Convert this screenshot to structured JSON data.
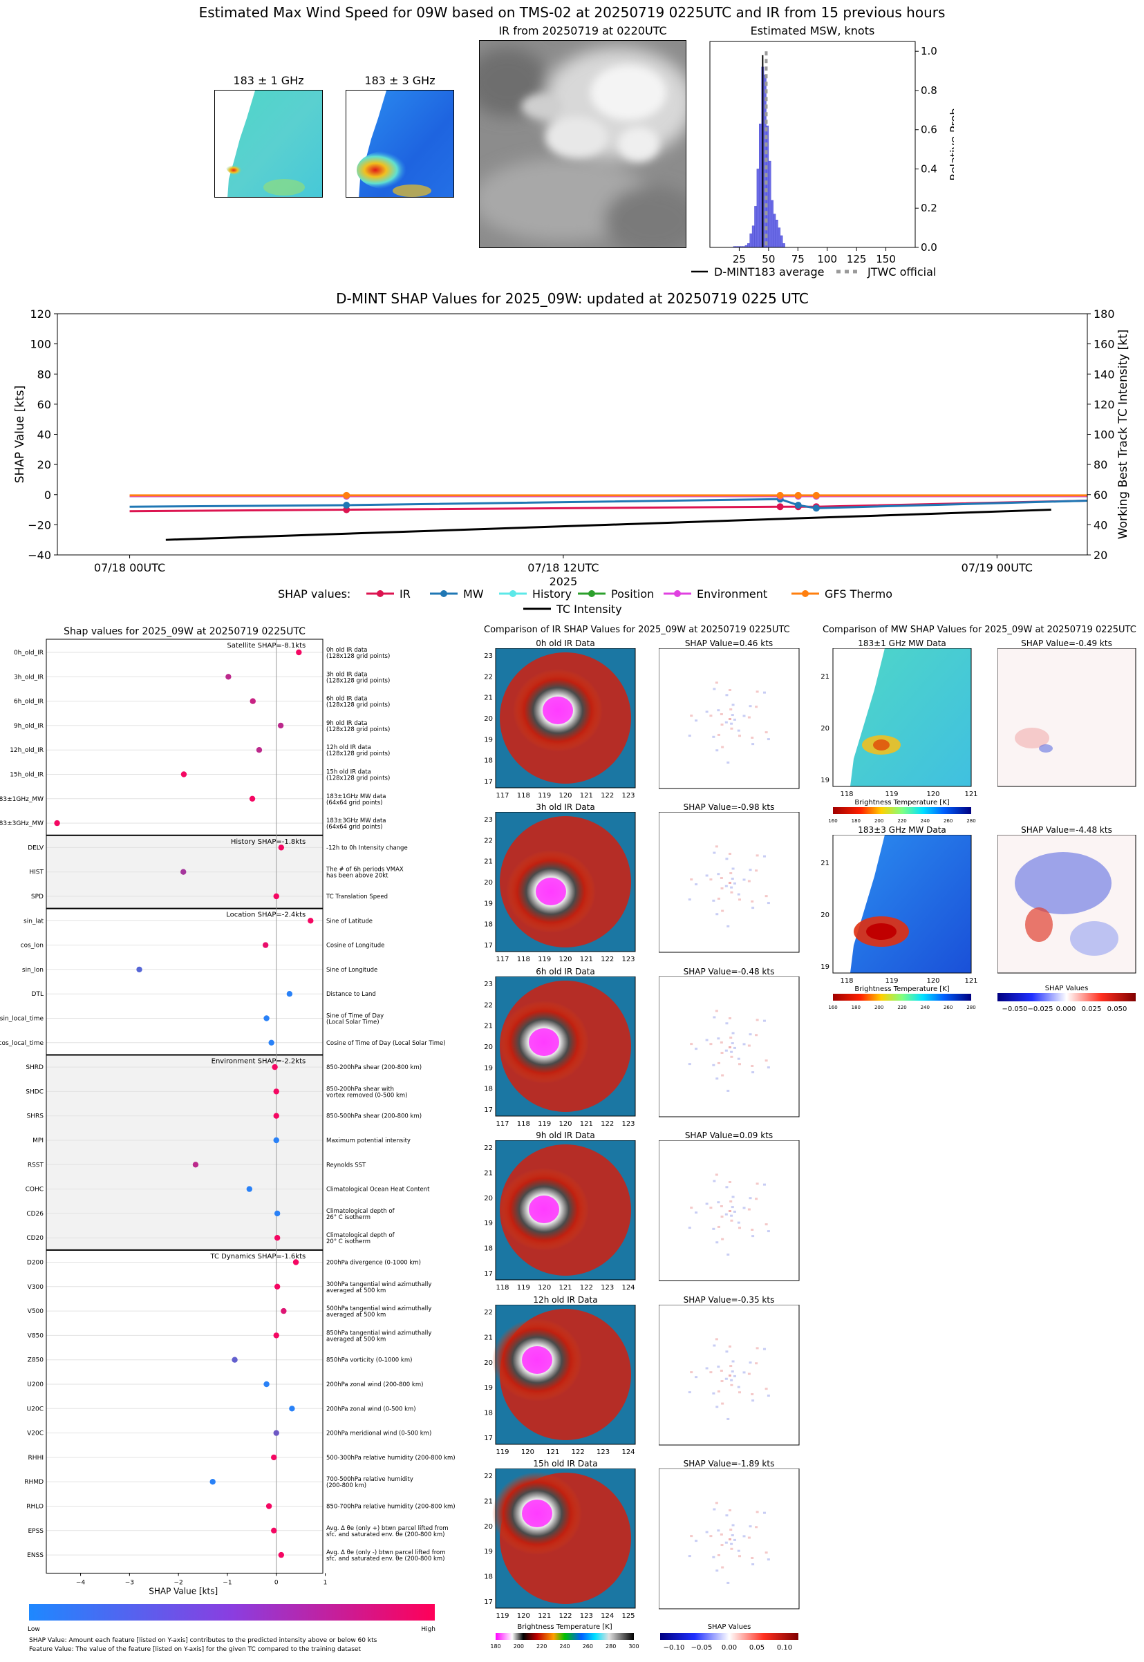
{
  "header": {
    "title": "Estimated Max Wind Speed for 09W based on TMS-02 at 20250719 0225UTC and IR from 15 previous hours",
    "mw1_title": "183 ± 1 GHz",
    "mw3_title": "183 ± 3 GHz",
    "ir_title": "IR from 20250719 at 0220UTC"
  },
  "hist": {
    "title": "Estimated MSW, knots",
    "ylabel": "Relative Prob",
    "xticks": [
      "25",
      "50",
      "75",
      "100",
      "125",
      "150"
    ],
    "yticks": [
      "0.0",
      "0.2",
      "0.4",
      "0.6",
      "0.8",
      "1.0"
    ],
    "legend_avg": "D-MINT183 average",
    "legend_jtwc": "JTWC official"
  },
  "timeseries": {
    "title": "D-MINT SHAP Values for 2025_09W: updated at 20250719 0225 UTC",
    "ylabel_left": "SHAP Value [kts]",
    "ylabel_right": "Working Best Track TC Intensity [kt]",
    "xlabel": "2025",
    "yticks_left": [
      "120",
      "100",
      "80",
      "60",
      "40",
      "20",
      "0",
      "−20",
      "−40"
    ],
    "yticks_right": [
      "180",
      "160",
      "140",
      "120",
      "100",
      "80",
      "60",
      "40",
      "20"
    ],
    "xticks": [
      "07/18 00UTC",
      "07/18 12UTC",
      "07/19 00UTC"
    ],
    "legend_title": "SHAP values:",
    "legend": [
      "IR",
      "MW",
      "History",
      "Position",
      "Environment",
      "GFS Thermo",
      "TC Intensity"
    ]
  },
  "shap": {
    "title": "Shap values for 2025_09W at 20250719 0225UTC",
    "xlabel": "SHAP Value [kts]",
    "xticks": [
      "−4",
      "−3",
      "−2",
      "−1",
      "0",
      "1"
    ],
    "colorbar_low": "Low",
    "colorbar_high": "High",
    "footnote1": "SHAP Value: Amount each feature [listed on Y-axis] contributes to the predicted intensity above or below 60 kts",
    "footnote2": "Feature Value: The value of the feature [listed on Y-axis] for the given TC compared to the training dataset"
  },
  "ir_compare": {
    "title": "Comparison of IR SHAP Values for 2025_09W at 20250719 0225UTC",
    "cb_label": "Brightness Temperature [K]",
    "cb_ticks": [
      "180",
      "200",
      "220",
      "240",
      "260",
      "280",
      "300"
    ],
    "shap_cb_label": "SHAP Values",
    "shap_cb_ticks": [
      "−0.10",
      "−0.05",
      "0.00",
      "0.05",
      "0.10"
    ],
    "rows": [
      {
        "title": "0h old IR Data",
        "shap": "SHAP Value=0.46 kts",
        "yticks": [
          "23",
          "22",
          "21",
          "20",
          "19",
          "18",
          "17"
        ],
        "xticks": [
          "117",
          "118",
          "119",
          "120",
          "121",
          "122",
          "123"
        ]
      },
      {
        "title": "3h old IR Data",
        "shap": "SHAP Value=-0.98 kts",
        "yticks": [
          "23",
          "22",
          "21",
          "20",
          "19",
          "18",
          "17"
        ],
        "xticks": [
          "117",
          "118",
          "119",
          "120",
          "121",
          "122",
          "123"
        ]
      },
      {
        "title": "6h old IR Data",
        "shap": "SHAP Value=-0.48 kts",
        "yticks": [
          "23",
          "22",
          "21",
          "20",
          "19",
          "18",
          "17"
        ],
        "xticks": [
          "117",
          "118",
          "119",
          "120",
          "121",
          "122",
          "123"
        ]
      },
      {
        "title": "9h old IR Data",
        "shap": "SHAP Value=0.09 kts",
        "yticks": [
          "22",
          "21",
          "20",
          "19",
          "18",
          "17"
        ],
        "xticks": [
          "118",
          "119",
          "120",
          "121",
          "122",
          "123",
          "124"
        ]
      },
      {
        "title": "12h old IR Data",
        "shap": "SHAP Value=-0.35 kts",
        "yticks": [
          "22",
          "21",
          "20",
          "19",
          "18",
          "17"
        ],
        "xticks": [
          "119",
          "120",
          "121",
          "122",
          "123",
          "124"
        ]
      },
      {
        "title": "15h old IR Data",
        "shap": "SHAP Value=-1.89 kts",
        "yticks": [
          "22",
          "21",
          "20",
          "19",
          "18",
          "17"
        ],
        "xticks": [
          "119",
          "120",
          "121",
          "122",
          "123",
          "124",
          "125"
        ]
      }
    ]
  },
  "mw_compare": {
    "title": "Comparison of MW SHAP Values for 2025_09W at 20250719 0225UTC",
    "cb_label": "Brightness Temperature [K]",
    "cb_ticks": [
      "160",
      "180",
      "200",
      "220",
      "240",
      "260",
      "280"
    ],
    "shap_cb_label": "SHAP Values",
    "shap_cb_ticks": [
      "−0.050",
      "−0.025",
      "0.000",
      "0.025",
      "0.050"
    ],
    "rows": [
      {
        "title": "183±1 GHz MW Data",
        "shap": "SHAP Value=-0.49 kts",
        "yticks": [
          "21",
          "20",
          "19"
        ],
        "xticks": [
          "118",
          "119",
          "120",
          "121"
        ]
      },
      {
        "title": "183±3 GHz MW Data",
        "shap": "SHAP Value=-4.48 kts",
        "yticks": [
          "21",
          "20",
          "19"
        ],
        "xticks": [
          "118",
          "119",
          "120",
          "121"
        ]
      }
    ]
  },
  "chart_data": [
    {
      "type": "bar",
      "title": "Estimated MSW, knots",
      "xlabel": "",
      "ylabel": "Relative Prob",
      "xlim": [
        0,
        175
      ],
      "ylim": [
        0,
        1.05
      ],
      "bin_width": 2,
      "bins": [
        20,
        22,
        24,
        26,
        28,
        30,
        32,
        34,
        36,
        38,
        40,
        42,
        44,
        46,
        48,
        50,
        52,
        54,
        56,
        58,
        60,
        62
      ],
      "values": [
        0.005,
        0.005,
        0.005,
        0.005,
        0.005,
        0.01,
        0.02,
        0.07,
        0.11,
        0.21,
        0.4,
        0.63,
        0.92,
        0.88,
        0.62,
        0.44,
        0.24,
        0.17,
        0.14,
        0.1,
        0.06,
        0.02
      ],
      "average_line_x": 45,
      "official_line_x": 48
    },
    {
      "type": "line",
      "title": "D-MINT SHAP Values for 2025_09W: updated at 20250719 0225 UTC",
      "xlabel": "2025",
      "ylabel": "SHAP Value [kts]",
      "y2label": "Working Best Track TC Intensity [kt]",
      "xlim_hours": [
        -2,
        26.5
      ],
      "ylim": [
        -40,
        120
      ],
      "y2lim": [
        20,
        180
      ],
      "xticks": [
        "07/18 00UTC",
        "07/18 12UTC",
        "07/19 00UTC"
      ],
      "series": [
        {
          "name": "IR",
          "color": "#dc1450",
          "x": [
            0,
            6,
            18,
            18.5,
            19,
            26.5
          ],
          "y": [
            -11,
            -10,
            -8,
            -8,
            -8,
            -4
          ],
          "markers": [
            6,
            18,
            18.5,
            19
          ]
        },
        {
          "name": "MW",
          "color": "#1f77b4",
          "x": [
            0,
            6,
            18,
            18.5,
            19,
            26.5
          ],
          "y": [
            -8,
            -7,
            -3,
            -7,
            -9,
            -4
          ],
          "markers": [
            6,
            18,
            18.5,
            19
          ]
        },
        {
          "name": "History",
          "color": "#5ce8e8",
          "x": [
            0,
            6,
            18,
            18.5,
            19,
            26.5
          ],
          "y": [
            -1,
            -1,
            -1,
            -1,
            -1,
            -1
          ],
          "markers": [
            6,
            18,
            18.5,
            19
          ]
        },
        {
          "name": "Position",
          "color": "#2ca02c",
          "x": [
            0,
            6,
            18,
            18.5,
            19,
            26.5
          ],
          "y": [
            -1,
            -1,
            -1,
            -1,
            -1,
            -1
          ],
          "markers": [
            6,
            18,
            18.5,
            19
          ]
        },
        {
          "name": "Environment",
          "color": "#e040e0",
          "x": [
            0,
            6,
            18,
            18.5,
            19,
            26.5
          ],
          "y": [
            -1,
            -1,
            -1,
            -1,
            -1,
            -1
          ],
          "markers": [
            6,
            18,
            18.5,
            19
          ]
        },
        {
          "name": "GFS Thermo",
          "color": "#ff7f0e",
          "x": [
            0,
            6,
            18,
            18.5,
            19,
            26.5
          ],
          "y": [
            -0.5,
            -0.5,
            -0.5,
            -0.5,
            -0.5,
            -0.5
          ],
          "markers": [
            6,
            18,
            18.5,
            19
          ]
        },
        {
          "name": "TC Intensity",
          "color": "#000000",
          "axis": "y2",
          "x": [
            1,
            25.5
          ],
          "y": [
            30,
            50
          ]
        }
      ]
    },
    {
      "type": "scatter",
      "title": "Shap values for 2025_09W at 20250719 0225UTC",
      "xlabel": "SHAP Value [kts]",
      "xlim": [
        -4.7,
        0.95
      ],
      "groups": [
        {
          "label": "Satellite SHAP=-8.1kts",
          "start": 0,
          "end": 8
        },
        {
          "label": "History SHAP=-1.8kts",
          "start": 8,
          "end": 11
        },
        {
          "label": "Location SHAP=-2.4kts",
          "start": 11,
          "end": 17
        },
        {
          "label": "Environment SHAP=-2.2kts",
          "start": 17,
          "end": 25
        },
        {
          "label": "TC Dynamics SHAP=-1.6kts",
          "start": 25,
          "end": 38
        }
      ],
      "features": [
        {
          "name": "0h_old_IR",
          "desc": "0h old IR data\n(128x128 grid points)",
          "shap": 0.46,
          "val": 0.95
        },
        {
          "name": "3h_old_IR",
          "desc": "3h old IR data\n(128x128 grid points)",
          "shap": -0.98,
          "val": 0.7
        },
        {
          "name": "6h_old_IR",
          "desc": "6h old IR data\n(128x128 grid points)",
          "shap": -0.48,
          "val": 0.75
        },
        {
          "name": "9h_old_IR",
          "desc": "9h old IR data\n(128x128 grid points)",
          "shap": 0.09,
          "val": 0.7
        },
        {
          "name": "12h_old_IR",
          "desc": "12h old IR data\n(128x128 grid points)",
          "shap": -0.35,
          "val": 0.7
        },
        {
          "name": "15h_old_IR",
          "desc": "15h old IR data\n(128x128 grid points)",
          "shap": -1.89,
          "val": 0.95
        },
        {
          "name": "183±1GHz_MW",
          "desc": "183±1GHz MW data\n(64x64 grid points)",
          "shap": -0.49,
          "val": 0.95
        },
        {
          "name": "183±3GHz_MW",
          "desc": "183±3GHz MW data\n(64x64 grid points)",
          "shap": -4.48,
          "val": 0.95
        },
        {
          "name": "DELV",
          "desc": "-12h to 0h Intensity change",
          "shap": 0.1,
          "val": 0.95
        },
        {
          "name": "HIST",
          "desc": "The # of 6h periods VMAX\nhas been above 20kt",
          "shap": -1.9,
          "val": 0.6
        },
        {
          "name": "SPD",
          "desc": "TC Translation Speed",
          "shap": 0.0,
          "val": 0.95
        },
        {
          "name": "sin_lat",
          "desc": "Sine of Latitude",
          "shap": 0.7,
          "val": 0.95
        },
        {
          "name": "cos_lon",
          "desc": "Cosine of Longitude",
          "shap": -0.22,
          "val": 0.9
        },
        {
          "name": "sin_lon",
          "desc": "Sine of Longitude",
          "shap": -2.8,
          "val": 0.25
        },
        {
          "name": "DTL",
          "desc": "Distance to Land",
          "shap": 0.27,
          "val": 0.05
        },
        {
          "name": "sin_local_time",
          "desc": "Sine of Time of Day\n(Local Solar Time)",
          "shap": -0.2,
          "val": 0.05
        },
        {
          "name": "cos_local_time",
          "desc": "Cosine of Time of Day (Local Solar Time)",
          "shap": -0.1,
          "val": 0.05
        },
        {
          "name": "SHRD",
          "desc": "850-200hPa shear (200-800 km)",
          "shap": -0.03,
          "val": 0.95
        },
        {
          "name": "SHDC",
          "desc": "850-200hPa shear with\nvortex removed (0-500 km)",
          "shap": 0.0,
          "val": 0.95
        },
        {
          "name": "SHRS",
          "desc": "850-500hPa shear (200-800 km)",
          "shap": 0.0,
          "val": 0.95
        },
        {
          "name": "MPI",
          "desc": "Maximum potential intensity",
          "shap": 0.0,
          "val": 0.05
        },
        {
          "name": "RSST",
          "desc": "Reynolds SST",
          "shap": -1.65,
          "val": 0.7
        },
        {
          "name": "COHC",
          "desc": "Climatological Ocean Heat Content",
          "shap": -0.55,
          "val": 0.05
        },
        {
          "name": "CD26",
          "desc": "Climatological depth of\n26° C isotherm",
          "shap": 0.02,
          "val": 0.05
        },
        {
          "name": "CD20",
          "desc": "Climatological depth of\n20° C isotherm",
          "shap": 0.02,
          "val": 0.95
        },
        {
          "name": "D200",
          "desc": "200hPa divergence (0-1000 km)",
          "shap": 0.4,
          "val": 0.95
        },
        {
          "name": "V300",
          "desc": "300hPa tangential wind azimuthally\naveraged at 500 km",
          "shap": 0.02,
          "val": 0.95
        },
        {
          "name": "V500",
          "desc": "500hPa tangential wind azimuthally\naveraged at 500 km",
          "shap": 0.15,
          "val": 0.85
        },
        {
          "name": "V850",
          "desc": "850hPa tangential wind azimuthally\naveraged at 500 km",
          "shap": 0.0,
          "val": 0.95
        },
        {
          "name": "Z850",
          "desc": "850hPa vorticity (0-1000 km)",
          "shap": -0.85,
          "val": 0.3
        },
        {
          "name": "U200",
          "desc": "200hPa zonal wind (200-800 km)",
          "shap": -0.2,
          "val": 0.05
        },
        {
          "name": "U20C",
          "desc": "200hPa zonal wind (0-500 km)",
          "shap": 0.32,
          "val": 0.05
        },
        {
          "name": "V20C",
          "desc": "200hPa meridional wind (0-500 km)",
          "shap": 0.0,
          "val": 0.35
        },
        {
          "name": "RHHI",
          "desc": "500-300hPa relative humidity (200-800 km)",
          "shap": -0.05,
          "val": 0.95
        },
        {
          "name": "RHMD",
          "desc": "700-500hPa relative humidity\n(200-800 km)",
          "shap": -1.3,
          "val": 0.05
        },
        {
          "name": "RHLO",
          "desc": "850-700hPa relative humidity (200-800 km)",
          "shap": -0.15,
          "val": 0.95
        },
        {
          "name": "EPSS",
          "desc": "Avg. Δ θe (only +) btwn parcel lifted from\nsfc. and saturated env. θe (200-800 km)",
          "shap": -0.05,
          "val": 0.95
        },
        {
          "name": "ENSS",
          "desc": "Avg. Δ θe (only -) btwn parcel lifted from\nsfc. and saturated env. θe (200-800 km)",
          "shap": 0.1,
          "val": 0.95
        }
      ]
    }
  ]
}
